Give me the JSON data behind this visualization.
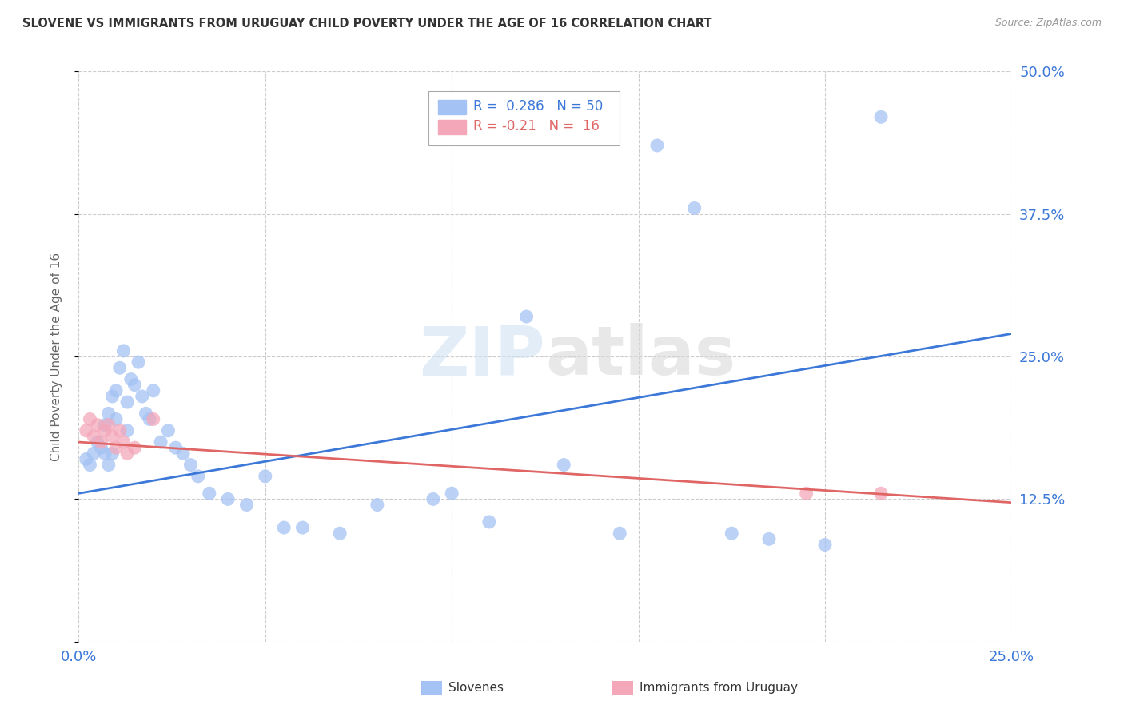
{
  "title": "SLOVENE VS IMMIGRANTS FROM URUGUAY CHILD POVERTY UNDER THE AGE OF 16 CORRELATION CHART",
  "source": "Source: ZipAtlas.com",
  "ylabel": "Child Poverty Under the Age of 16",
  "xlim": [
    0.0,
    0.25
  ],
  "ylim": [
    0.0,
    0.5
  ],
  "yticks": [
    0.0,
    0.125,
    0.25,
    0.375,
    0.5
  ],
  "ytick_labels": [
    "",
    "12.5%",
    "25.0%",
    "37.5%",
    "50.0%"
  ],
  "xticks": [
    0.0,
    0.05,
    0.1,
    0.15,
    0.2,
    0.25
  ],
  "xtick_labels": [
    "0.0%",
    "",
    "",
    "",
    "",
    "25.0%"
  ],
  "slovene_R": 0.286,
  "slovene_N": 50,
  "uruguay_R": -0.21,
  "uruguay_N": 16,
  "blue_color": "#a4c2f4",
  "pink_color": "#f4a7b9",
  "line_blue": "#3c78d8",
  "line_pink": "#e06666",
  "background_color": "#ffffff",
  "grid_color": "#cccccc",
  "title_color": "#333333",
  "legend_label_blue": "Slovenes",
  "legend_label_pink": "Immigrants from Uruguay",
  "watermark_zip": "ZIP",
  "watermark_atlas": "atlas",
  "slovene_x": [
    0.002,
    0.003,
    0.004,
    0.005,
    0.006,
    0.007,
    0.007,
    0.008,
    0.008,
    0.009,
    0.009,
    0.01,
    0.01,
    0.011,
    0.012,
    0.013,
    0.013,
    0.014,
    0.015,
    0.016,
    0.017,
    0.018,
    0.019,
    0.02,
    0.022,
    0.024,
    0.026,
    0.028,
    0.03,
    0.032,
    0.035,
    0.04,
    0.045,
    0.05,
    0.055,
    0.06,
    0.07,
    0.08,
    0.095,
    0.1,
    0.11,
    0.12,
    0.13,
    0.145,
    0.155,
    0.165,
    0.175,
    0.185,
    0.2,
    0.215
  ],
  "slovene_y": [
    0.16,
    0.155,
    0.165,
    0.175,
    0.17,
    0.165,
    0.19,
    0.155,
    0.2,
    0.165,
    0.215,
    0.22,
    0.195,
    0.24,
    0.255,
    0.21,
    0.185,
    0.23,
    0.225,
    0.245,
    0.215,
    0.2,
    0.195,
    0.22,
    0.175,
    0.185,
    0.17,
    0.165,
    0.155,
    0.145,
    0.13,
    0.125,
    0.12,
    0.145,
    0.1,
    0.1,
    0.095,
    0.12,
    0.125,
    0.13,
    0.105,
    0.285,
    0.155,
    0.095,
    0.435,
    0.38,
    0.095,
    0.09,
    0.085,
    0.46
  ],
  "uruguay_x": [
    0.002,
    0.003,
    0.004,
    0.005,
    0.006,
    0.007,
    0.008,
    0.009,
    0.01,
    0.011,
    0.012,
    0.013,
    0.015,
    0.02,
    0.195,
    0.215
  ],
  "uruguay_y": [
    0.185,
    0.195,
    0.18,
    0.19,
    0.175,
    0.185,
    0.19,
    0.18,
    0.17,
    0.185,
    0.175,
    0.165,
    0.17,
    0.195,
    0.13,
    0.13
  ],
  "blue_line_x": [
    0.0,
    0.25
  ],
  "blue_line_y": [
    0.13,
    0.27
  ],
  "pink_line_x": [
    0.0,
    0.25
  ],
  "pink_line_y": [
    0.175,
    0.122
  ]
}
